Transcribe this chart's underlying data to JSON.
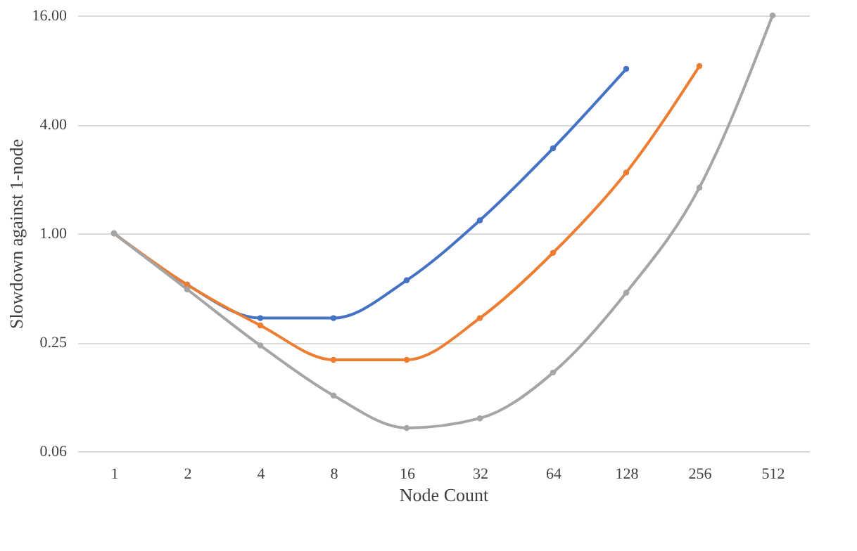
{
  "chart_data": {
    "type": "line",
    "xlabel": "Node Count",
    "ylabel": "Slowdown against 1-node",
    "categories": [
      "1",
      "2",
      "4",
      "8",
      "16",
      "32",
      "64",
      "128",
      "256",
      "512"
    ],
    "series": [
      {
        "color": "#4472c4",
        "values": [
          1.0,
          0.52,
          0.34,
          0.34,
          0.55,
          1.18,
          2.95,
          8.1,
          null,
          null
        ]
      },
      {
        "color": "#ed7d31",
        "values": [
          1.0,
          0.52,
          0.31,
          0.2,
          0.2,
          0.34,
          0.78,
          2.17,
          8.4,
          null
        ]
      },
      {
        "color": "#a5a5a5",
        "values": [
          1.0,
          0.49,
          0.24,
          0.127,
          0.084,
          0.095,
          0.17,
          0.47,
          1.79,
          16
        ]
      }
    ],
    "log": "y",
    "ylim": [
      0.0625,
      16
    ],
    "yticks": [
      {
        "value": 0.0625,
        "label": "0.06"
      },
      {
        "value": 0.25,
        "label": "0.25"
      },
      {
        "value": 1,
        "label": "1.00"
      },
      {
        "value": 4,
        "label": "4.00"
      },
      {
        "value": 16,
        "label": "16.00"
      }
    ],
    "grid": "y",
    "marker": "circle",
    "line_style": "solid",
    "legend": false
  }
}
